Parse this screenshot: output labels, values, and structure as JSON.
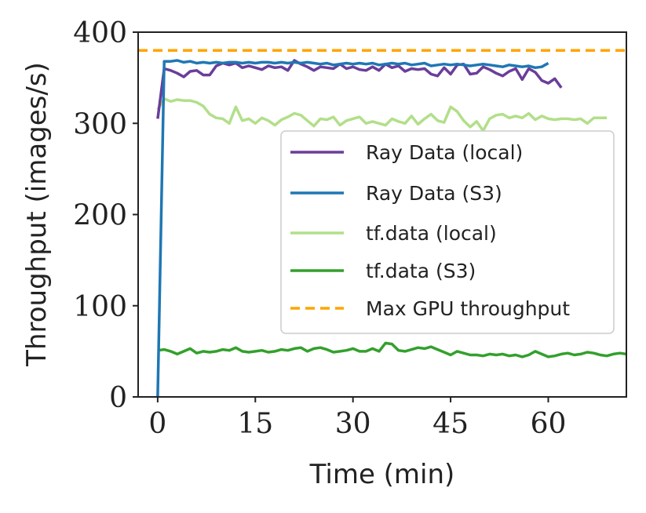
{
  "chart_data": {
    "type": "line",
    "title": "",
    "xlabel": "Time (min)",
    "ylabel": "Throughput (images/s)",
    "xlim": [
      -3,
      72
    ],
    "ylim": [
      0,
      400
    ],
    "xticks": [
      0,
      15,
      30,
      45,
      60
    ],
    "yticks": [
      0,
      100,
      200,
      300,
      400
    ],
    "grid": false,
    "legend_position": "center-right",
    "series": [
      {
        "name": "Ray Data (local)",
        "color": "#6a3d9a",
        "dash": "solid",
        "x": [
          0,
          1,
          2,
          3,
          4,
          5,
          6,
          7,
          8,
          9,
          10,
          11,
          12,
          13,
          14,
          15,
          16,
          17,
          18,
          19,
          20,
          21,
          22,
          23,
          24,
          25,
          26,
          27,
          28,
          29,
          30,
          31,
          32,
          33,
          34,
          35,
          36,
          37,
          38,
          39,
          40,
          41,
          42,
          43,
          44,
          45,
          46,
          47,
          48,
          49,
          50,
          51,
          52,
          53,
          54,
          55,
          56,
          57,
          58,
          59,
          60,
          61,
          62
        ],
        "y": [
          305,
          360,
          358,
          355,
          351,
          357,
          358,
          353,
          353,
          363,
          366,
          364,
          366,
          361,
          363,
          361,
          359,
          363,
          361,
          362,
          358,
          369,
          365,
          362,
          358,
          362,
          361,
          360,
          365,
          360,
          362,
          359,
          358,
          362,
          358,
          365,
          361,
          363,
          357,
          360,
          359,
          360,
          354,
          352,
          361,
          354,
          364,
          365,
          354,
          355,
          362,
          359,
          355,
          352,
          357,
          360,
          348,
          360,
          356,
          347,
          344,
          349,
          339
        ]
      },
      {
        "name": "Ray Data (S3)",
        "color": "#1f77b4",
        "dash": "solid",
        "x": [
          0,
          1,
          2,
          3,
          4,
          5,
          6,
          7,
          8,
          9,
          10,
          11,
          12,
          13,
          14,
          15,
          16,
          17,
          18,
          19,
          20,
          21,
          22,
          23,
          24,
          25,
          26,
          27,
          28,
          29,
          30,
          31,
          32,
          33,
          34,
          35,
          36,
          37,
          38,
          39,
          40,
          41,
          42,
          43,
          44,
          45,
          46,
          47,
          48,
          49,
          50,
          51,
          52,
          53,
          54,
          55,
          56,
          57,
          58,
          59,
          60
        ],
        "y": [
          0,
          368,
          368,
          369,
          367,
          368,
          366,
          367,
          366,
          367,
          366,
          367,
          367,
          366,
          367,
          366,
          367,
          367,
          366,
          367,
          366,
          367,
          366,
          367,
          366,
          365,
          366,
          364,
          365,
          366,
          365,
          366,
          365,
          366,
          364,
          365,
          366,
          365,
          366,
          364,
          365,
          366,
          363,
          364,
          365,
          364,
          365,
          364,
          363,
          364,
          365,
          364,
          363,
          362,
          364,
          363,
          362,
          363,
          361,
          362,
          366
        ]
      },
      {
        "name": "tf.data (local)",
        "color": "#b2df8a",
        "dash": "solid",
        "x": [
          0,
          1,
          2,
          3,
          4,
          5,
          6,
          7,
          8,
          9,
          10,
          11,
          12,
          13,
          14,
          15,
          16,
          17,
          18,
          19,
          20,
          21,
          22,
          23,
          24,
          25,
          26,
          27,
          28,
          29,
          30,
          31,
          32,
          33,
          34,
          35,
          36,
          37,
          38,
          39,
          40,
          41,
          42,
          43,
          44,
          45,
          46,
          47,
          48,
          49,
          50,
          51,
          52,
          53,
          54,
          55,
          56,
          57,
          58,
          59,
          60,
          61,
          62,
          63,
          64,
          65,
          66,
          67,
          68,
          69
        ],
        "y": [
          315,
          327,
          324,
          326,
          325,
          325,
          323,
          319,
          310,
          306,
          305,
          300,
          318,
          303,
          305,
          300,
          306,
          303,
          298,
          304,
          307,
          311,
          309,
          303,
          297,
          305,
          304,
          307,
          298,
          303,
          305,
          307,
          300,
          302,
          300,
          298,
          305,
          302,
          300,
          308,
          299,
          305,
          310,
          303,
          301,
          318,
          313,
          303,
          296,
          302,
          292,
          305,
          309,
          310,
          306,
          308,
          306,
          311,
          304,
          308,
          305,
          304,
          305,
          305,
          304,
          305,
          300,
          306,
          306,
          306
        ]
      },
      {
        "name": "tf.data (S3)",
        "color": "#33a02c",
        "dash": "solid",
        "x": [
          0,
          1,
          2,
          3,
          4,
          5,
          6,
          7,
          8,
          9,
          10,
          11,
          12,
          13,
          14,
          15,
          16,
          17,
          18,
          19,
          20,
          21,
          22,
          23,
          24,
          25,
          26,
          27,
          28,
          29,
          30,
          31,
          32,
          33,
          34,
          35,
          36,
          37,
          38,
          39,
          40,
          41,
          42,
          43,
          44,
          45,
          46,
          47,
          48,
          49,
          50,
          51,
          52,
          53,
          54,
          55,
          56,
          57,
          58,
          59,
          60,
          61,
          62,
          63,
          64,
          65,
          66,
          67,
          68,
          69,
          70,
          71,
          72
        ],
        "y": [
          51,
          52,
          50,
          47,
          50,
          53,
          48,
          50,
          49,
          50,
          52,
          51,
          54,
          50,
          49,
          50,
          51,
          49,
          50,
          52,
          51,
          53,
          54,
          50,
          53,
          54,
          52,
          49,
          50,
          51,
          53,
          50,
          50,
          53,
          50,
          59,
          58,
          51,
          50,
          52,
          54,
          53,
          55,
          52,
          49,
          46,
          50,
          48,
          46,
          46,
          45,
          47,
          46,
          47,
          45,
          46,
          44,
          46,
          50,
          47,
          44,
          45,
          47,
          48,
          46,
          47,
          49,
          48,
          46,
          45,
          47,
          48,
          47
        ]
      },
      {
        "name": "Max GPU throughput",
        "color": "#ffa500",
        "dash": "dashed",
        "x": [
          -3,
          72
        ],
        "y": [
          380,
          380
        ]
      }
    ]
  }
}
